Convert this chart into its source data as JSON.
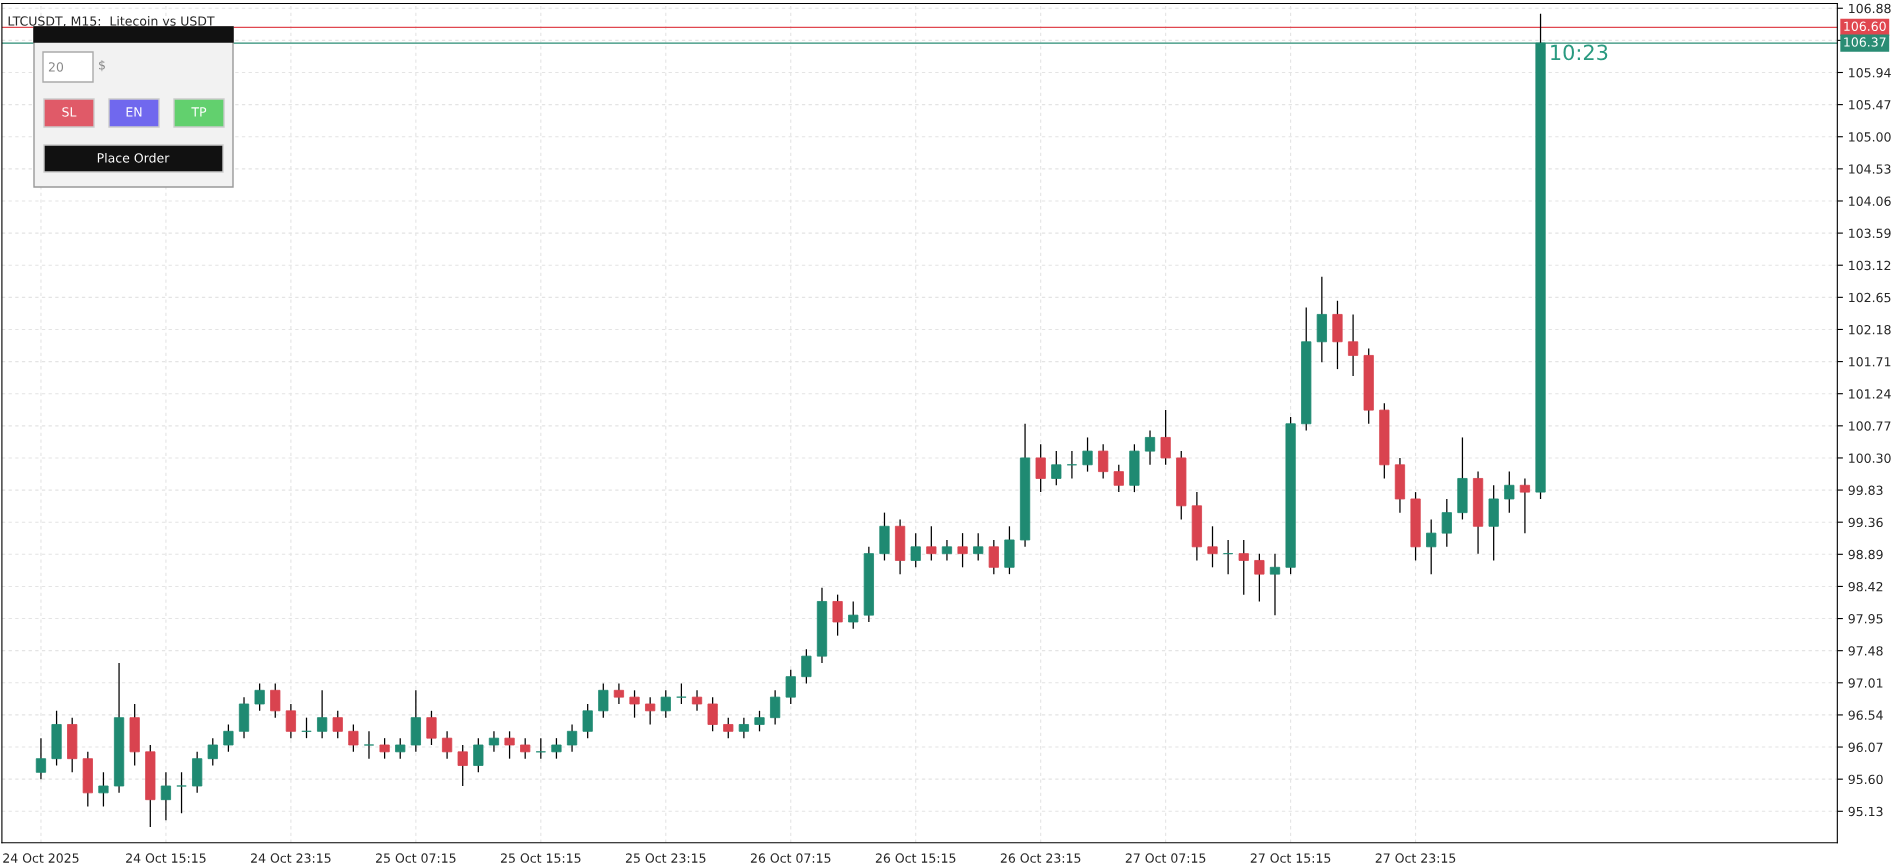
{
  "chart_data": {
    "type": "candlestick",
    "title": "LTCUSDT, M15:  Litecoin vs USDT",
    "x": [
      "2025-10-24T07:15",
      "2025-10-24T08:15",
      "2025-10-24T09:15",
      "2025-10-24T10:15",
      "2025-10-24T11:15",
      "2025-10-24T12:15",
      "2025-10-24T13:15",
      "2025-10-24T14:15",
      "2025-10-24T15:15",
      "2025-10-24T16:15",
      "2025-10-24T17:15",
      "2025-10-24T18:15",
      "2025-10-24T19:15",
      "2025-10-24T20:15",
      "2025-10-24T21:15",
      "2025-10-24T22:15",
      "2025-10-24T23:15",
      "2025-10-25T00:15",
      "2025-10-25T01:15",
      "2025-10-25T02:15",
      "2025-10-25T03:15",
      "2025-10-25T04:15",
      "2025-10-25T05:15",
      "2025-10-25T06:15",
      "2025-10-25T07:15",
      "2025-10-25T08:15",
      "2025-10-25T09:15",
      "2025-10-25T10:15",
      "2025-10-25T11:15",
      "2025-10-25T12:15",
      "2025-10-25T13:15",
      "2025-10-25T14:15",
      "2025-10-25T15:15",
      "2025-10-25T16:15",
      "2025-10-25T17:15",
      "2025-10-25T18:15",
      "2025-10-25T19:15",
      "2025-10-25T20:15",
      "2025-10-25T21:15",
      "2025-10-25T22:15",
      "2025-10-25T23:15",
      "2025-10-26T00:15",
      "2025-10-26T01:15",
      "2025-10-26T02:15",
      "2025-10-26T03:15",
      "2025-10-26T04:15",
      "2025-10-26T05:15",
      "2025-10-26T06:15",
      "2025-10-26T07:15",
      "2025-10-26T08:15",
      "2025-10-26T09:15",
      "2025-10-26T10:15",
      "2025-10-26T11:15",
      "2025-10-26T12:15",
      "2025-10-26T13:15",
      "2025-10-26T14:15",
      "2025-10-26T15:15",
      "2025-10-26T16:15",
      "2025-10-26T17:15",
      "2025-10-26T18:15",
      "2025-10-26T19:15",
      "2025-10-26T20:15",
      "2025-10-26T21:15",
      "2025-10-26T22:15",
      "2025-10-26T23:15",
      "2025-10-27T00:15",
      "2025-10-27T01:15",
      "2025-10-27T02:15",
      "2025-10-27T03:15",
      "2025-10-27T04:15",
      "2025-10-27T05:15",
      "2025-10-27T06:15",
      "2025-10-27T07:15",
      "2025-10-27T08:15",
      "2025-10-27T09:15",
      "2025-10-27T10:15",
      "2025-10-27T11:15",
      "2025-10-27T12:15",
      "2025-10-27T13:15",
      "2025-10-27T14:15",
      "2025-10-27T15:15",
      "2025-10-27T16:15",
      "2025-10-27T17:15",
      "2025-10-27T18:15",
      "2025-10-27T19:15",
      "2025-10-27T20:15",
      "2025-10-27T21:15",
      "2025-10-27T22:15",
      "2025-10-27T23:15",
      "2025-10-28T00:15",
      "2025-10-28T01:15",
      "2025-10-28T02:15",
      "2025-10-28T03:15",
      "2025-10-28T04:15",
      "2025-10-28T05:15",
      "2025-10-28T06:15",
      "2025-10-28T07:15"
    ],
    "xlim": [
      "2025-10-24T04:45",
      "2025-10-29T02:15"
    ],
    "xticks": [
      {
        "value": "2025-10-24T07:15",
        "label": "24 Oct 2025"
      },
      {
        "value": "2025-10-24T15:15",
        "label": "24 Oct 15:15"
      },
      {
        "value": "2025-10-24T23:15",
        "label": "24 Oct 23:15"
      },
      {
        "value": "2025-10-25T07:15",
        "label": "25 Oct 07:15"
      },
      {
        "value": "2025-10-25T15:15",
        "label": "25 Oct 15:15"
      },
      {
        "value": "2025-10-25T23:15",
        "label": "25 Oct 23:15"
      },
      {
        "value": "2025-10-26T07:15",
        "label": "26 Oct 07:15"
      },
      {
        "value": "2025-10-26T15:15",
        "label": "26 Oct 15:15"
      },
      {
        "value": "2025-10-26T23:15",
        "label": "26 Oct 23:15"
      },
      {
        "value": "2025-10-27T07:15",
        "label": "27 Oct 07:15"
      },
      {
        "value": "2025-10-27T15:15",
        "label": "27 Oct 15:15"
      },
      {
        "value": "2025-10-27T23:15",
        "label": "27 Oct 23:15"
      }
    ],
    "ohlc": [
      [
        95.7,
        96.2,
        95.6,
        95.9
      ],
      [
        95.9,
        96.6,
        95.8,
        96.4
      ],
      [
        96.4,
        96.5,
        95.7,
        95.9
      ],
      [
        95.9,
        96.0,
        95.2,
        95.4
      ],
      [
        95.4,
        95.7,
        95.2,
        95.5
      ],
      [
        95.5,
        97.3,
        95.4,
        96.5
      ],
      [
        96.5,
        96.7,
        95.8,
        96.0
      ],
      [
        96.0,
        96.1,
        94.9,
        95.3
      ],
      [
        95.3,
        95.7,
        95.0,
        95.5
      ],
      [
        95.5,
        95.7,
        95.1,
        95.5
      ],
      [
        95.5,
        96.0,
        95.4,
        95.9
      ],
      [
        95.9,
        96.2,
        95.8,
        96.1
      ],
      [
        96.1,
        96.4,
        96.0,
        96.3
      ],
      [
        96.3,
        96.8,
        96.2,
        96.7
      ],
      [
        96.7,
        97.0,
        96.6,
        96.9
      ],
      [
        96.9,
        97.0,
        96.5,
        96.6
      ],
      [
        96.6,
        96.7,
        96.2,
        96.3
      ],
      [
        96.3,
        96.5,
        96.2,
        96.3
      ],
      [
        96.3,
        96.9,
        96.2,
        96.5
      ],
      [
        96.5,
        96.6,
        96.2,
        96.3
      ],
      [
        96.3,
        96.4,
        96.0,
        96.1
      ],
      [
        96.1,
        96.3,
        95.9,
        96.1
      ],
      [
        96.1,
        96.2,
        95.9,
        96.0
      ],
      [
        96.0,
        96.2,
        95.9,
        96.1
      ],
      [
        96.1,
        96.9,
        96.0,
        96.5
      ],
      [
        96.5,
        96.6,
        96.1,
        96.2
      ],
      [
        96.2,
        96.3,
        95.9,
        96.0
      ],
      [
        96.0,
        96.1,
        95.5,
        95.8
      ],
      [
        95.8,
        96.2,
        95.7,
        96.1
      ],
      [
        96.1,
        96.3,
        96.0,
        96.2
      ],
      [
        96.2,
        96.3,
        95.9,
        96.1
      ],
      [
        96.1,
        96.2,
        95.9,
        96.0
      ],
      [
        96.0,
        96.2,
        95.9,
        96.0
      ],
      [
        96.0,
        96.2,
        95.9,
        96.1
      ],
      [
        96.1,
        96.4,
        96.0,
        96.3
      ],
      [
        96.3,
        96.7,
        96.2,
        96.6
      ],
      [
        96.6,
        97.0,
        96.5,
        96.9
      ],
      [
        96.9,
        97.0,
        96.7,
        96.8
      ],
      [
        96.8,
        96.9,
        96.5,
        96.7
      ],
      [
        96.7,
        96.8,
        96.4,
        96.6
      ],
      [
        96.6,
        96.9,
        96.5,
        96.8
      ],
      [
        96.8,
        97.0,
        96.7,
        96.8
      ],
      [
        96.8,
        96.9,
        96.6,
        96.7
      ],
      [
        96.7,
        96.8,
        96.3,
        96.4
      ],
      [
        96.4,
        96.5,
        96.2,
        96.3
      ],
      [
        96.3,
        96.5,
        96.2,
        96.4
      ],
      [
        96.4,
        96.6,
        96.3,
        96.5
      ],
      [
        96.5,
        96.9,
        96.4,
        96.8
      ],
      [
        96.8,
        97.2,
        96.7,
        97.1
      ],
      [
        97.1,
        97.5,
        97.0,
        97.4
      ],
      [
        97.4,
        98.4,
        97.3,
        98.2
      ],
      [
        98.2,
        98.3,
        97.7,
        97.9
      ],
      [
        97.9,
        98.2,
        97.8,
        98.0
      ],
      [
        98.0,
        99.0,
        97.9,
        98.9
      ],
      [
        98.9,
        99.5,
        98.8,
        99.3
      ],
      [
        99.3,
        99.4,
        98.6,
        98.8
      ],
      [
        98.8,
        99.2,
        98.7,
        99.0
      ],
      [
        99.0,
        99.3,
        98.8,
        98.9
      ],
      [
        98.9,
        99.1,
        98.8,
        99.0
      ],
      [
        99.0,
        99.2,
        98.7,
        98.9
      ],
      [
        98.9,
        99.2,
        98.8,
        99.0
      ],
      [
        99.0,
        99.1,
        98.6,
        98.7
      ],
      [
        98.7,
        99.3,
        98.6,
        99.1
      ],
      [
        99.1,
        100.8,
        99.0,
        100.3
      ],
      [
        100.3,
        100.5,
        99.8,
        100.0
      ],
      [
        100.0,
        100.4,
        99.9,
        100.2
      ],
      [
        100.2,
        100.4,
        100.0,
        100.2
      ],
      [
        100.2,
        100.6,
        100.1,
        100.4
      ],
      [
        100.4,
        100.5,
        100.0,
        100.1
      ],
      [
        100.1,
        100.2,
        99.8,
        99.9
      ],
      [
        99.9,
        100.5,
        99.8,
        100.4
      ],
      [
        100.4,
        100.7,
        100.2,
        100.6
      ],
      [
        100.6,
        101.0,
        100.2,
        100.3
      ],
      [
        100.3,
        100.4,
        99.4,
        99.6
      ],
      [
        99.6,
        99.8,
        98.8,
        99.0
      ],
      [
        99.0,
        99.3,
        98.7,
        98.9
      ],
      [
        98.9,
        99.1,
        98.6,
        98.9
      ],
      [
        98.9,
        99.1,
        98.3,
        98.8
      ],
      [
        98.8,
        98.9,
        98.2,
        98.6
      ],
      [
        98.6,
        98.9,
        98.0,
        98.7
      ],
      [
        98.7,
        100.9,
        98.6,
        100.8
      ],
      [
        100.8,
        102.5,
        100.7,
        102.0
      ],
      [
        102.0,
        102.95,
        101.7,
        102.4
      ],
      [
        102.4,
        102.6,
        101.6,
        102.0
      ],
      [
        102.0,
        102.4,
        101.5,
        101.8
      ],
      [
        101.8,
        101.9,
        100.8,
        101.0
      ],
      [
        101.0,
        101.1,
        100.0,
        100.2
      ],
      [
        100.2,
        100.3,
        99.5,
        99.7
      ],
      [
        99.7,
        99.8,
        98.8,
        99.0
      ],
      [
        99.0,
        99.4,
        98.6,
        99.2
      ],
      [
        99.2,
        99.7,
        99.0,
        99.5
      ],
      [
        99.5,
        100.6,
        99.4,
        100.0
      ],
      [
        100.0,
        100.1,
        98.9,
        99.3
      ],
      [
        99.3,
        99.9,
        98.8,
        99.7
      ],
      [
        99.7,
        100.1,
        99.5,
        99.9
      ],
      [
        99.9,
        100.0,
        99.2,
        99.8
      ],
      [
        99.8,
        106.8,
        99.7,
        106.37
      ]
    ],
    "colors": [
      "#1f8a72",
      "#1f8a72",
      "#d9434f",
      "#d9434f",
      "#1f8a72",
      "#1f8a72",
      "#d9434f",
      "#d9434f",
      "#1f8a72",
      "#1f8a72",
      "#1f8a72",
      "#1f8a72",
      "#1f8a72",
      "#1f8a72",
      "#1f8a72",
      "#d9434f",
      "#d9434f",
      "#1f8a72",
      "#1f8a72",
      "#d9434f",
      "#d9434f",
      "#1f8a72",
      "#d9434f",
      "#1f8a72",
      "#1f8a72",
      "#d9434f",
      "#d9434f",
      "#d9434f",
      "#1f8a72",
      "#1f8a72",
      "#d9434f",
      "#d9434f",
      "#1f8a72",
      "#1f8a72",
      "#1f8a72",
      "#1f8a72",
      "#1f8a72",
      "#d9434f",
      "#d9434f",
      "#d9434f",
      "#1f8a72",
      "#1f8a72",
      "#d9434f",
      "#d9434f",
      "#d9434f",
      "#1f8a72",
      "#1f8a72",
      "#1f8a72",
      "#1f8a72",
      "#1f8a72",
      "#1f8a72",
      "#d9434f",
      "#1f8a72",
      "#1f8a72",
      "#1f8a72",
      "#d9434f",
      "#1f8a72",
      "#d9434f",
      "#1f8a72",
      "#d9434f",
      "#1f8a72",
      "#d9434f",
      "#1f8a72",
      "#1f8a72",
      "#d9434f",
      "#1f8a72",
      "#1f8a72",
      "#1f8a72",
      "#d9434f",
      "#d9434f",
      "#1f8a72",
      "#1f8a72",
      "#d9434f",
      "#d9434f",
      "#d9434f",
      "#d9434f",
      "#1f8a72",
      "#d9434f",
      "#d9434f",
      "#1f8a72",
      "#1f8a72",
      "#1f8a72",
      "#1f8a72",
      "#d9434f",
      "#d9434f",
      "#d9434f",
      "#d9434f",
      "#d9434f",
      "#d9434f",
      "#1f8a72",
      "#1f8a72",
      "#1f8a72",
      "#d9434f",
      "#1f8a72",
      "#1f8a72",
      "#d9434f",
      "#1f8a72"
    ],
    "ylim": [
      94.67,
      106.95
    ],
    "yticks": [
      95.13,
      {
        "value": 95.6,
        "label": "95.60"
      },
      96.07,
      96.54,
      97.01,
      97.48,
      97.95,
      98.42,
      98.89,
      99.36,
      99.83,
      {
        "value": 100.3,
        "label": "100.30"
      },
      100.77,
      101.24,
      101.71,
      102.18,
      102.65,
      103.12,
      103.59,
      104.06,
      104.53,
      {
        "value": 105.0,
        "label": "105.00"
      },
      105.47,
      105.94,
      {
        "value": 106.41,
        "label": null
      },
      106.88
    ],
    "grid": true,
    "ref_lines": [
      {
        "axis": "y",
        "value": 106.6,
        "label": "106.60",
        "color": "#e0474f"
      },
      {
        "axis": "y",
        "value": 106.37,
        "label": "106.37",
        "color": "#2a8c74"
      }
    ],
    "annotations": [
      {
        "text": "10:23",
        "x": "2025-10-28T07:15",
        "y": 106.37
      },
      "20",
      "$",
      "SL",
      "EN",
      "TP",
      "Place Order"
    ]
  }
}
